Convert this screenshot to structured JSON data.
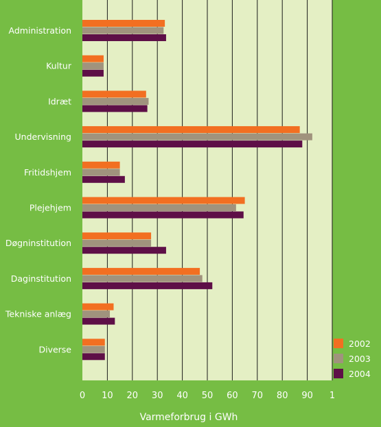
{
  "chart_data": {
    "type": "bar",
    "orientation": "horizontal",
    "categories": [
      "Administration",
      "Kultur",
      "Idræt",
      "Undervisning",
      "Fritidshjem",
      "Plejehjem",
      "Døgninstitution",
      "Daginstitution",
      "Tekniske anlæg",
      "Diverse"
    ],
    "series": [
      {
        "name": "2002",
        "color": "#f26f21",
        "values": [
          33,
          8.5,
          25.5,
          87,
          15,
          65,
          27.5,
          47,
          12.5,
          9
        ]
      },
      {
        "name": "2003",
        "color": "#a0937d",
        "values": [
          32.5,
          8.5,
          26.5,
          92,
          15,
          61.5,
          27.5,
          48,
          11,
          9
        ]
      },
      {
        "name": "2004",
        "color": "#5e0f47",
        "values": [
          33.5,
          8.5,
          26,
          88,
          17,
          64.5,
          33.5,
          52,
          13,
          9
        ]
      }
    ],
    "xlabel": "Varmeforbrug i GWh",
    "xticks": [
      "0",
      "10",
      "20",
      "30",
      "40",
      "50",
      "60",
      "70",
      "80",
      "90",
      "1"
    ],
    "xlim": [
      0,
      100
    ],
    "grid": true,
    "legend_position": "bottom-right",
    "plot_background": "#e4efc4",
    "gridline_color": "#1a1a1a",
    "page_background": "#76bd44"
  }
}
